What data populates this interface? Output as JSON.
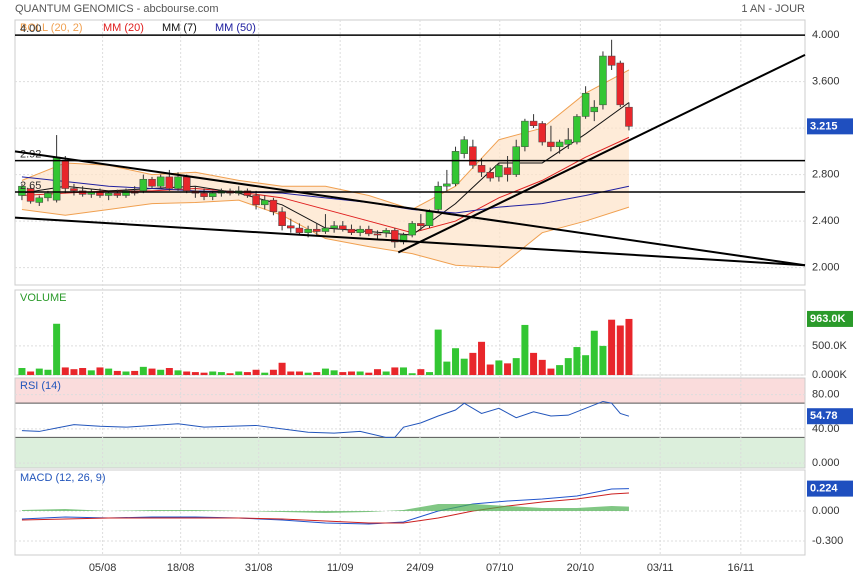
{
  "chart_data": [
    {
      "type": "candlestick",
      "title": "QUANTUM GENOMICS - abcbourse.com",
      "subtitle": "1 AN - JOUR",
      "up_color": "#33c633",
      "down_color": "#e8262b",
      "x": [
        0,
        1,
        2,
        3,
        4,
        5,
        6,
        7,
        8,
        9,
        10,
        11,
        12,
        13,
        14,
        15,
        16,
        17,
        18,
        19,
        20,
        21,
        22,
        23,
        24,
        25,
        26,
        27,
        28,
        29,
        30,
        31,
        32,
        33,
        34,
        35,
        36,
        37,
        38,
        39,
        40,
        41,
        42,
        43,
        44,
        45,
        46,
        47,
        48,
        49,
        50,
        51,
        52,
        53,
        54,
        55,
        56,
        57,
        58,
        59,
        60,
        61,
        62,
        63,
        64,
        65,
        66,
        67,
        68,
        69,
        70
      ],
      "open": [
        2.62,
        2.68,
        2.56,
        2.6,
        2.58,
        2.92,
        2.68,
        2.66,
        2.63,
        2.65,
        2.62,
        2.64,
        2.62,
        2.66,
        2.66,
        2.76,
        2.7,
        2.78,
        2.68,
        2.78,
        2.66,
        2.64,
        2.61,
        2.64,
        2.66,
        2.64,
        2.66,
        2.62,
        2.54,
        2.58,
        2.48,
        2.36,
        2.34,
        2.3,
        2.33,
        2.31,
        2.34,
        2.36,
        2.33,
        2.3,
        2.33,
        2.29,
        2.3,
        2.32,
        2.22,
        2.28,
        2.38,
        2.36,
        2.5,
        2.7,
        2.72,
        2.98,
        3.04,
        2.88,
        2.82,
        2.78,
        2.86,
        2.8,
        3.04,
        3.26,
        3.24,
        3.08,
        3.04,
        3.06,
        3.08,
        3.3,
        3.34,
        3.4,
        3.82,
        3.76,
        3.38
      ],
      "high": [
        2.72,
        2.7,
        2.62,
        2.66,
        3.14,
        2.96,
        2.72,
        2.7,
        2.68,
        2.68,
        2.66,
        2.67,
        2.68,
        2.7,
        2.8,
        2.78,
        2.8,
        2.84,
        2.82,
        2.8,
        2.7,
        2.68,
        2.66,
        2.68,
        2.68,
        2.7,
        2.68,
        2.66,
        2.62,
        2.6,
        2.52,
        2.42,
        2.38,
        2.36,
        2.38,
        2.46,
        2.4,
        2.4,
        2.37,
        2.36,
        2.36,
        2.32,
        2.34,
        2.34,
        2.3,
        2.4,
        2.46,
        2.5,
        2.74,
        2.84,
        3.04,
        3.13,
        3.1,
        2.94,
        2.86,
        2.9,
        2.96,
        3.1,
        3.28,
        3.32,
        3.26,
        3.22,
        3.1,
        3.2,
        3.32,
        3.56,
        3.44,
        3.86,
        3.96,
        3.78,
        3.42
      ],
      "low": [
        2.58,
        2.55,
        2.53,
        2.57,
        2.56,
        2.64,
        2.62,
        2.61,
        2.6,
        2.6,
        2.58,
        2.6,
        2.6,
        2.62,
        2.64,
        2.68,
        2.68,
        2.66,
        2.66,
        2.64,
        2.6,
        2.58,
        2.58,
        2.61,
        2.62,
        2.62,
        2.6,
        2.5,
        2.5,
        2.45,
        2.32,
        2.3,
        2.28,
        2.26,
        2.28,
        2.29,
        2.3,
        2.31,
        2.28,
        2.27,
        2.27,
        2.25,
        2.26,
        2.17,
        2.2,
        2.26,
        2.32,
        2.34,
        2.48,
        2.66,
        2.7,
        2.94,
        2.85,
        2.78,
        2.74,
        2.74,
        2.74,
        2.78,
        3.0,
        3.2,
        3.05,
        3.0,
        2.98,
        3.02,
        3.06,
        3.28,
        3.26,
        3.36,
        3.7,
        3.38,
        3.18
      ],
      "close": [
        2.7,
        2.57,
        2.6,
        2.64,
        2.95,
        2.68,
        2.66,
        2.63,
        2.65,
        2.62,
        2.64,
        2.62,
        2.66,
        2.64,
        2.76,
        2.7,
        2.78,
        2.68,
        2.78,
        2.66,
        2.64,
        2.61,
        2.64,
        2.66,
        2.64,
        2.66,
        2.62,
        2.54,
        2.58,
        2.48,
        2.36,
        2.34,
        2.3,
        2.33,
        2.31,
        2.34,
        2.36,
        2.33,
        2.3,
        2.33,
        2.29,
        2.28,
        2.32,
        2.22,
        2.28,
        2.38,
        2.36,
        2.48,
        2.7,
        2.72,
        3.0,
        3.1,
        2.88,
        2.82,
        2.77,
        2.88,
        2.8,
        3.04,
        3.26,
        3.22,
        3.08,
        3.04,
        3.08,
        3.1,
        3.3,
        3.5,
        3.38,
        3.82,
        3.74,
        3.4,
        3.215
      ],
      "xlim": [
        -0.8,
        90.3
      ],
      "xticks": [
        {
          "value": 9.3,
          "label": "05/08"
        },
        {
          "value": 18.3,
          "label": "18/08"
        },
        {
          "value": 27.3,
          "label": "31/08"
        },
        {
          "value": 36.7,
          "label": "11/09"
        },
        {
          "value": 45.9,
          "label": "24/09"
        },
        {
          "value": 55.1,
          "label": "07/10"
        },
        {
          "value": 64.4,
          "label": "20/10"
        },
        {
          "value": 73.6,
          "label": "03/11"
        },
        {
          "value": 82.9,
          "label": "16/11"
        }
      ],
      "ylim": [
        1.85,
        4.13
      ],
      "yticks": [
        {
          "value": 2,
          "label": "2.000"
        },
        {
          "value": 2.4,
          "label": "2.400"
        },
        {
          "value": 2.8,
          "label": "2.800"
        },
        {
          "value": 3.2,
          "label": "3.200"
        },
        {
          "value": 3.6,
          "label": "3.600"
        },
        {
          "value": 4,
          "label": "4.000"
        }
      ],
      "series": [
        {
          "name": "BOLL (20, 2)",
          "color": "#f0a050",
          "x": [
            0,
            5,
            10,
            15,
            20,
            25,
            30,
            35,
            40,
            45,
            50,
            55,
            60,
            65,
            70
          ],
          "upper": [
            2.75,
            2.9,
            2.88,
            2.8,
            2.82,
            2.75,
            2.7,
            2.7,
            2.62,
            2.5,
            2.7,
            3.1,
            3.2,
            3.5,
            3.7
          ],
          "lower": [
            2.5,
            2.45,
            2.5,
            2.55,
            2.56,
            2.58,
            2.45,
            2.25,
            2.18,
            2.12,
            2.02,
            2.0,
            2.3,
            2.4,
            2.52
          ]
        },
        {
          "name": "MM (20)",
          "color": "#e02020",
          "x": [
            0,
            5,
            10,
            15,
            20,
            25,
            30,
            35,
            40,
            45,
            50,
            55,
            60,
            65,
            70
          ],
          "values": [
            2.62,
            2.64,
            2.66,
            2.66,
            2.68,
            2.65,
            2.6,
            2.5,
            2.4,
            2.3,
            2.4,
            2.6,
            2.75,
            2.95,
            3.12
          ]
        },
        {
          "name": "MM (7)",
          "color": "#111111",
          "x": [
            0,
            5,
            10,
            15,
            20,
            25,
            30,
            35,
            40,
            45,
            50,
            55,
            60,
            65,
            70
          ],
          "values": [
            2.64,
            2.7,
            2.66,
            2.68,
            2.7,
            2.64,
            2.54,
            2.34,
            2.31,
            2.28,
            2.55,
            2.9,
            2.9,
            3.15,
            3.42
          ]
        },
        {
          "name": "MM (50)",
          "color": "#2020a0",
          "x": [
            0,
            5,
            10,
            15,
            20,
            25,
            30,
            35,
            40,
            45,
            50,
            55,
            60,
            65,
            70
          ],
          "values": [
            2.78,
            2.74,
            2.7,
            2.68,
            2.66,
            2.65,
            2.64,
            2.6,
            2.56,
            2.5,
            2.47,
            2.52,
            2.55,
            2.62,
            2.7
          ]
        }
      ],
      "hlines": [
        {
          "value": 4,
          "label": "4.00"
        },
        2.92,
        2.65
      ],
      "trendlines": [
        {
          "x": [
            -0.8,
            90.3
          ],
          "y": [
            3.0,
            2.02
          ]
        },
        {
          "x": [
            -0.8,
            90.3
          ],
          "y": [
            2.43,
            2.02
          ]
        },
        {
          "x": [
            43.4,
            90.3
          ],
          "y": [
            2.13,
            3.83
          ]
        }
      ]
    },
    {
      "type": "bar",
      "title": "VOLUME",
      "values": [
        120,
        60,
        110,
        90,
        880,
        130,
        100,
        120,
        80,
        130,
        110,
        70,
        60,
        70,
        140,
        110,
        90,
        120,
        80,
        60,
        50,
        40,
        60,
        50,
        30,
        60,
        50,
        90,
        40,
        90,
        210,
        60,
        60,
        40,
        50,
        110,
        80,
        50,
        60,
        60,
        40,
        100,
        60,
        130,
        130,
        30,
        100,
        50,
        780,
        230,
        460,
        280,
        380,
        570,
        180,
        250,
        200,
        290,
        860,
        380,
        260,
        110,
        170,
        290,
        480,
        340,
        760,
        500,
        950,
        850,
        963
      ],
      "last_label": "963.0K",
      "ylim": [
        0,
        1460
      ],
      "yticks": [
        {
          "value": 0,
          "label": "0.000K"
        },
        {
          "value": 500,
          "label": "500.0K"
        }
      ]
    },
    {
      "type": "line",
      "title": "RSI (14)",
      "color": "#2255bb",
      "x": [
        0,
        2,
        4,
        6,
        9,
        12,
        15,
        18,
        21,
        24,
        27,
        30,
        33,
        36,
        39,
        42,
        43,
        44,
        46,
        48,
        50,
        51,
        53,
        55,
        57,
        59,
        61,
        63,
        65,
        67,
        68,
        69,
        70
      ],
      "values": [
        38,
        37,
        41,
        45,
        43,
        42,
        44,
        46,
        42,
        43,
        44,
        40,
        36,
        35,
        37,
        30,
        30,
        42,
        47,
        55,
        62,
        70,
        58,
        64,
        53,
        60,
        55,
        56,
        64,
        72,
        70,
        58,
        54.78
      ],
      "ylim": [
        -5.7,
        99.4
      ],
      "overbought": 70,
      "oversold": 30,
      "yticks": [
        {
          "value": 0,
          "label": "0.000"
        },
        {
          "value": 40,
          "label": "40.00"
        },
        {
          "value": 80,
          "label": "80.00"
        }
      ]
    },
    {
      "type": "line",
      "title": "MACD (12, 26, 9)",
      "x": [
        0,
        5,
        10,
        15,
        20,
        25,
        30,
        35,
        40,
        44,
        48,
        52,
        56,
        60,
        64,
        68,
        70
      ],
      "series": [
        {
          "color": "#2255cc",
          "values": [
            -0.08,
            -0.06,
            -0.07,
            -0.06,
            -0.06,
            -0.07,
            -0.09,
            -0.12,
            -0.13,
            -0.11,
            0.0,
            0.07,
            0.1,
            0.12,
            0.15,
            0.22,
            0.224
          ]
        },
        {
          "color": "#cc2020",
          "values": [
            -0.09,
            -0.08,
            -0.07,
            -0.07,
            -0.07,
            -0.07,
            -0.08,
            -0.1,
            -0.12,
            -0.12,
            -0.07,
            0.0,
            0.05,
            0.09,
            0.12,
            0.17,
            0.18
          ]
        },
        {
          "color": "#4caf50",
          "kind": "area",
          "values": [
            0.01,
            0.02,
            0.0,
            0.01,
            0.01,
            0.0,
            -0.01,
            -0.02,
            -0.01,
            0.01,
            0.07,
            0.07,
            0.05,
            0.03,
            0.03,
            0.05,
            0.044
          ]
        }
      ],
      "ylim": [
        -0.44,
        0.41
      ],
      "yticks": [
        {
          "value": 0,
          "label": "0.000"
        },
        {
          "value": -0.3,
          "label": "-0.300"
        }
      ]
    }
  ]
}
